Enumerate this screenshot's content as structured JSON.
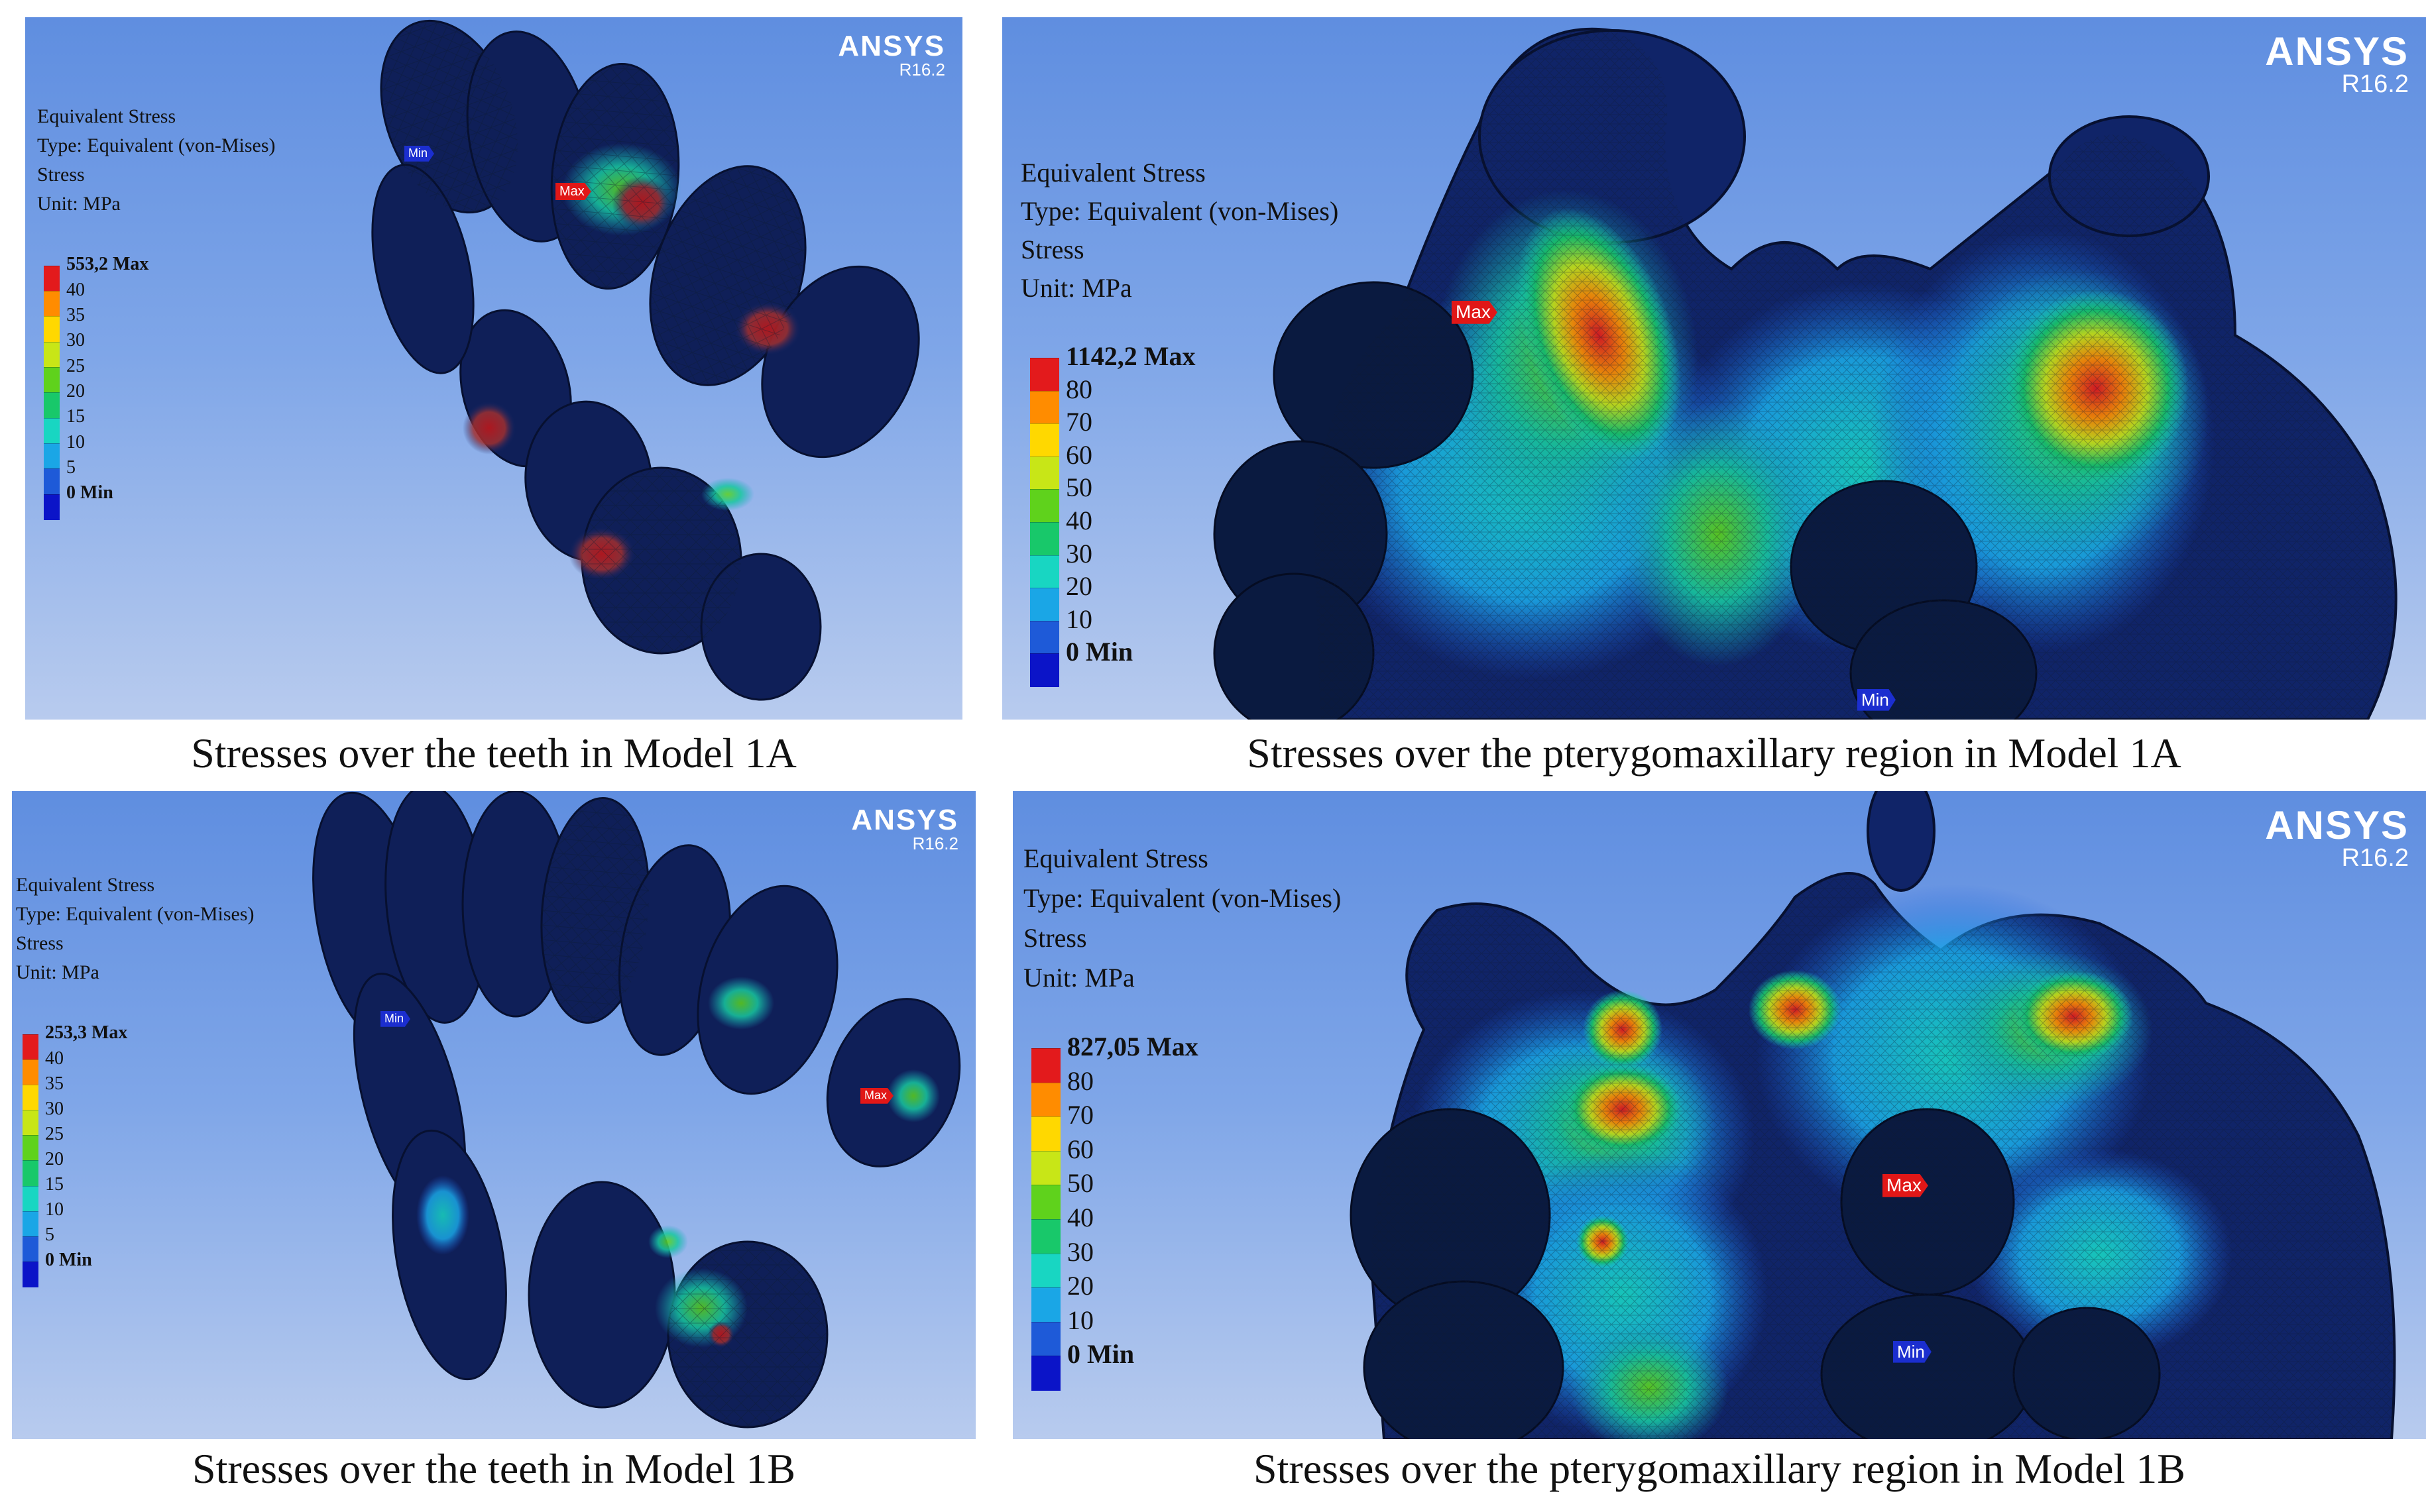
{
  "brand": {
    "name": "ANSYS",
    "version": "R16.2"
  },
  "legend": {
    "title": "Equivalent Stress",
    "type": "Type: Equivalent (von-Mises)",
    "subtitle": "Stress",
    "unit": "Unit: MPa"
  },
  "colors": [
    "#e31a1c",
    "#ff8c00",
    "#ffd800",
    "#c8e617",
    "#5fd21c",
    "#18c86a",
    "#18d6c2",
    "#1aa6e6",
    "#1e5ad8",
    "#0b14c8"
  ],
  "panels": [
    {
      "id": "p1",
      "max_label": "553,2 Max",
      "ticks": [
        "40",
        "35",
        "30",
        "25",
        "20",
        "15",
        "10",
        "5"
      ],
      "min_label": "0 Min",
      "probe_max": "Max",
      "probe_min": "Min",
      "caption": "Stresses over the teeth in Model 1A"
    },
    {
      "id": "p2",
      "max_label": "1142,2 Max",
      "ticks": [
        "80",
        "70",
        "60",
        "50",
        "40",
        "30",
        "20",
        "10"
      ],
      "min_label": "0 Min",
      "probe_max": "Max",
      "probe_min": "Min",
      "caption": "Stresses over the pterygomaxillary region in Model 1A"
    },
    {
      "id": "p3",
      "max_label": "253,3 Max",
      "ticks": [
        "40",
        "35",
        "30",
        "25",
        "20",
        "15",
        "10",
        "5"
      ],
      "min_label": "0 Min",
      "probe_max": "Max",
      "probe_min": "Min",
      "caption": "Stresses over the teeth in Model 1B"
    },
    {
      "id": "p4",
      "max_label": "827,05 Max",
      "ticks": [
        "80",
        "70",
        "60",
        "50",
        "40",
        "30",
        "20",
        "10"
      ],
      "min_label": "0 Min",
      "probe_max": "Max",
      "probe_min": "Min",
      "caption": "Stresses over the pterygomaxillary region in Model 1B"
    }
  ]
}
